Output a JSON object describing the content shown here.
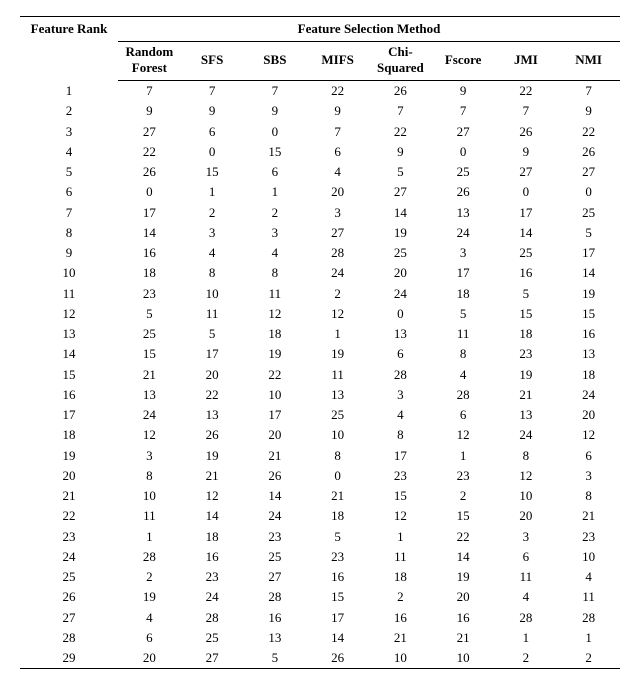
{
  "table": {
    "type": "table",
    "rank_header": "Feature Rank",
    "group_header": "Feature Selection Method",
    "columns": [
      "Random Forest",
      "SFS",
      "SBS",
      "MIFS",
      "Chi-Squared",
      "Fscore",
      "JMI",
      "NMI"
    ],
    "col_widths_pct": [
      16,
      8,
      8,
      9,
      13,
      10,
      8,
      8
    ],
    "rank_col_width_pct": 14,
    "rows": [
      [
        1,
        7,
        7,
        7,
        22,
        26,
        9,
        22,
        7
      ],
      [
        2,
        9,
        9,
        9,
        9,
        7,
        7,
        7,
        9
      ],
      [
        3,
        27,
        6,
        0,
        7,
        22,
        27,
        26,
        22
      ],
      [
        4,
        22,
        0,
        15,
        6,
        9,
        0,
        9,
        26
      ],
      [
        5,
        26,
        15,
        6,
        4,
        5,
        25,
        27,
        27
      ],
      [
        6,
        0,
        1,
        1,
        20,
        27,
        26,
        0,
        0
      ],
      [
        7,
        17,
        2,
        2,
        3,
        14,
        13,
        17,
        25
      ],
      [
        8,
        14,
        3,
        3,
        27,
        19,
        24,
        14,
        5
      ],
      [
        9,
        16,
        4,
        4,
        28,
        25,
        3,
        25,
        17
      ],
      [
        10,
        18,
        8,
        8,
        24,
        20,
        17,
        16,
        14
      ],
      [
        11,
        23,
        10,
        11,
        2,
        24,
        18,
        5,
        19
      ],
      [
        12,
        5,
        11,
        12,
        12,
        0,
        5,
        15,
        15
      ],
      [
        13,
        25,
        5,
        18,
        1,
        13,
        11,
        18,
        16
      ],
      [
        14,
        15,
        17,
        19,
        19,
        6,
        8,
        23,
        13
      ],
      [
        15,
        21,
        20,
        22,
        11,
        28,
        4,
        19,
        18
      ],
      [
        16,
        13,
        22,
        10,
        13,
        3,
        28,
        21,
        24
      ],
      [
        17,
        24,
        13,
        17,
        25,
        4,
        6,
        13,
        20
      ],
      [
        18,
        12,
        26,
        20,
        10,
        8,
        12,
        24,
        12
      ],
      [
        19,
        3,
        19,
        21,
        8,
        17,
        1,
        8,
        6
      ],
      [
        20,
        8,
        21,
        26,
        0,
        23,
        23,
        12,
        3
      ],
      [
        21,
        10,
        12,
        14,
        21,
        15,
        2,
        10,
        8
      ],
      [
        22,
        11,
        14,
        24,
        18,
        12,
        15,
        20,
        21
      ],
      [
        23,
        1,
        18,
        23,
        5,
        1,
        22,
        3,
        23
      ],
      [
        24,
        28,
        16,
        25,
        23,
        11,
        14,
        6,
        10
      ],
      [
        25,
        2,
        23,
        27,
        16,
        18,
        19,
        11,
        4
      ],
      [
        26,
        19,
        24,
        28,
        15,
        2,
        20,
        4,
        11
      ],
      [
        27,
        4,
        28,
        16,
        17,
        16,
        16,
        28,
        28
      ],
      [
        28,
        6,
        25,
        13,
        14,
        21,
        21,
        1,
        1
      ],
      [
        29,
        20,
        27,
        5,
        26,
        10,
        10,
        2,
        2
      ]
    ],
    "border_color": "#000000",
    "background_color": "#ffffff",
    "font_family": "Times New Roman",
    "header_fontsize_pt": 11,
    "body_fontsize_pt": 11,
    "header_fontweight": "bold",
    "body_fontweight": "normal"
  }
}
